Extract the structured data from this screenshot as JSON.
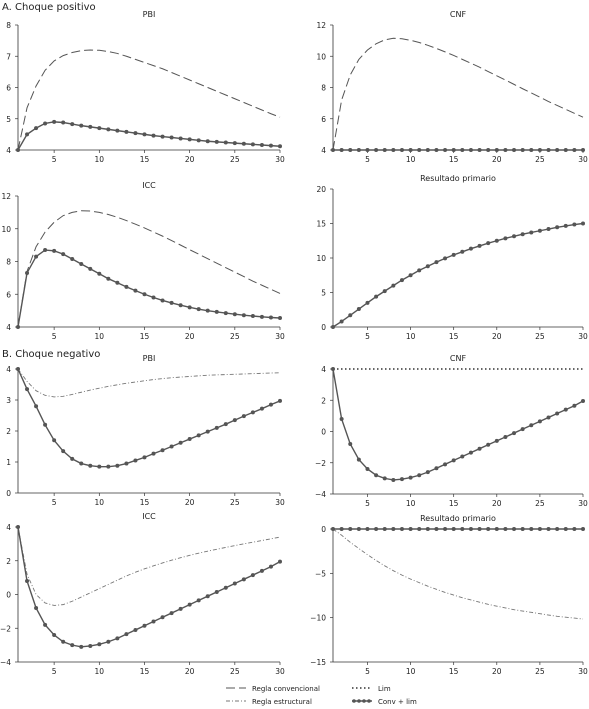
{
  "colors": {
    "axis": "#333333",
    "conv": "#555555",
    "struct": "#777777",
    "lim": "#333333",
    "convlim": "#555555"
  },
  "sections": [
    {
      "label": "A. Choque positivo"
    },
    {
      "label": "B. Choque negativo"
    }
  ],
  "legend": {
    "items": [
      {
        "key": "conv",
        "label": "Regla convencional"
      },
      {
        "key": "struct",
        "label": "Regla estructural"
      },
      {
        "key": "lim",
        "label": "Lim"
      },
      {
        "key": "convlim",
        "label": "Conv + lim"
      }
    ]
  },
  "chart_data": [
    {
      "type": "line",
      "panel": "A-PBI",
      "title": "PBI",
      "xlim": [
        1,
        30
      ],
      "ylim": [
        4,
        8
      ],
      "xticks": [
        5,
        10,
        15,
        20,
        25,
        30
      ],
      "yticks": [
        4,
        5,
        6,
        7,
        8
      ],
      "x": [
        1,
        2,
        3,
        4,
        5,
        6,
        7,
        8,
        9,
        10,
        11,
        12,
        13,
        14,
        15,
        16,
        17,
        18,
        19,
        20,
        21,
        22,
        23,
        24,
        25,
        26,
        27,
        28,
        29,
        30
      ],
      "series": [
        {
          "key": "conv",
          "values": [
            4.0,
            5.35,
            6.05,
            6.55,
            6.85,
            7.02,
            7.12,
            7.18,
            7.2,
            7.19,
            7.15,
            7.09,
            7.0,
            6.9,
            6.8,
            6.7,
            6.6,
            6.48,
            6.36,
            6.24,
            6.12,
            6.0,
            5.88,
            5.76,
            5.64,
            5.52,
            5.4,
            5.28,
            5.16,
            5.05
          ]
        },
        {
          "key": "convlim",
          "values": [
            4.0,
            4.5,
            4.7,
            4.85,
            4.9,
            4.88,
            4.83,
            4.78,
            4.74,
            4.7,
            4.66,
            4.62,
            4.58,
            4.54,
            4.5,
            4.46,
            4.43,
            4.4,
            4.37,
            4.34,
            4.31,
            4.28,
            4.26,
            4.24,
            4.22,
            4.2,
            4.18,
            4.16,
            4.14,
            4.12
          ]
        }
      ]
    },
    {
      "type": "line",
      "panel": "A-CNF",
      "title": "CNF",
      "xlim": [
        1,
        30
      ],
      "ylim": [
        4,
        12
      ],
      "xticks": [
        5,
        10,
        15,
        20,
        25,
        30
      ],
      "yticks": [
        4,
        6,
        8,
        10,
        12
      ],
      "x": [
        1,
        2,
        3,
        4,
        5,
        6,
        7,
        8,
        9,
        10,
        11,
        12,
        13,
        14,
        15,
        16,
        17,
        18,
        19,
        20,
        21,
        22,
        23,
        24,
        25,
        26,
        27,
        28,
        29,
        30
      ],
      "series": [
        {
          "key": "conv",
          "values": [
            4.0,
            7.2,
            8.8,
            9.8,
            10.4,
            10.8,
            11.05,
            11.15,
            11.12,
            11.02,
            10.88,
            10.7,
            10.5,
            10.28,
            10.05,
            9.8,
            9.55,
            9.3,
            9.02,
            8.75,
            8.48,
            8.2,
            7.92,
            7.65,
            7.38,
            7.1,
            6.85,
            6.6,
            6.35,
            6.1
          ]
        },
        {
          "key": "convlim",
          "values": [
            4.0,
            4.0,
            4.0,
            4.0,
            4.0,
            4.0,
            4.0,
            4.0,
            4.0,
            4.0,
            4.0,
            4.0,
            4.0,
            4.0,
            4.0,
            4.0,
            4.0,
            4.0,
            4.0,
            4.0,
            4.0,
            4.0,
            4.0,
            4.0,
            4.0,
            4.0,
            4.0,
            4.0,
            4.0,
            4.0
          ]
        }
      ]
    },
    {
      "type": "line",
      "panel": "A-ICC",
      "title": "ICC",
      "xlim": [
        1,
        30
      ],
      "ylim": [
        4,
        12
      ],
      "xticks": [
        5,
        10,
        15,
        20,
        25,
        30
      ],
      "yticks": [
        4,
        6,
        8,
        10,
        12
      ],
      "x": [
        1,
        2,
        3,
        4,
        5,
        6,
        7,
        8,
        9,
        10,
        11,
        12,
        13,
        14,
        15,
        16,
        17,
        18,
        19,
        20,
        21,
        22,
        23,
        24,
        25,
        26,
        27,
        28,
        29,
        30
      ],
      "series": [
        {
          "key": "conv",
          "values": [
            4.0,
            7.4,
            8.9,
            9.8,
            10.4,
            10.8,
            11.0,
            11.1,
            11.08,
            11.0,
            10.87,
            10.7,
            10.5,
            10.28,
            10.05,
            9.8,
            9.55,
            9.28,
            9.0,
            8.72,
            8.45,
            8.17,
            7.9,
            7.62,
            7.35,
            7.08,
            6.8,
            6.55,
            6.3,
            6.05
          ]
        },
        {
          "key": "convlim",
          "values": [
            4.0,
            7.3,
            8.3,
            8.7,
            8.65,
            8.45,
            8.15,
            7.85,
            7.55,
            7.25,
            6.95,
            6.7,
            6.45,
            6.22,
            6.0,
            5.8,
            5.62,
            5.47,
            5.33,
            5.2,
            5.09,
            5.0,
            4.92,
            4.85,
            4.78,
            4.72,
            4.67,
            4.62,
            4.58,
            4.55
          ]
        }
      ]
    },
    {
      "type": "line",
      "panel": "A-Resultado",
      "title": "Resultado primario",
      "xlim": [
        1,
        30
      ],
      "ylim": [
        0,
        20
      ],
      "xticks": [
        5,
        10,
        15,
        20,
        25,
        30
      ],
      "yticks": [
        0,
        5,
        10,
        15,
        20
      ],
      "x": [
        1,
        2,
        3,
        4,
        5,
        6,
        7,
        8,
        9,
        10,
        11,
        12,
        13,
        14,
        15,
        16,
        17,
        18,
        19,
        20,
        21,
        22,
        23,
        24,
        25,
        26,
        27,
        28,
        29,
        30
      ],
      "series": [
        {
          "key": "convlim",
          "values": [
            0.0,
            0.8,
            1.7,
            2.6,
            3.5,
            4.4,
            5.2,
            6.0,
            6.8,
            7.5,
            8.2,
            8.8,
            9.4,
            9.95,
            10.45,
            10.9,
            11.35,
            11.75,
            12.15,
            12.5,
            12.85,
            13.15,
            13.45,
            13.7,
            13.95,
            14.2,
            14.45,
            14.65,
            14.85,
            15.0
          ]
        }
      ]
    },
    {
      "type": "line",
      "panel": "B-PBI",
      "title": "PBI",
      "xlim": [
        1,
        30
      ],
      "ylim": [
        0,
        4
      ],
      "xticks": [
        5,
        10,
        15,
        20,
        25,
        30
      ],
      "yticks": [
        0,
        1,
        2,
        3,
        4
      ],
      "x": [
        1,
        2,
        3,
        4,
        5,
        6,
        7,
        8,
        9,
        10,
        11,
        12,
        13,
        14,
        15,
        16,
        17,
        18,
        19,
        20,
        21,
        22,
        23,
        24,
        25,
        26,
        27,
        28,
        29,
        30
      ],
      "series": [
        {
          "key": "struct",
          "values": [
            4.0,
            3.6,
            3.3,
            3.15,
            3.1,
            3.12,
            3.18,
            3.25,
            3.32,
            3.38,
            3.44,
            3.49,
            3.54,
            3.58,
            3.62,
            3.66,
            3.69,
            3.72,
            3.74,
            3.76,
            3.78,
            3.8,
            3.81,
            3.82,
            3.83,
            3.84,
            3.85,
            3.86,
            3.87,
            3.88
          ]
        },
        {
          "key": "convlim",
          "values": [
            4.0,
            3.35,
            2.8,
            2.2,
            1.7,
            1.35,
            1.1,
            0.95,
            0.88,
            0.85,
            0.85,
            0.88,
            0.95,
            1.05,
            1.15,
            1.27,
            1.38,
            1.5,
            1.62,
            1.74,
            1.86,
            1.98,
            2.1,
            2.22,
            2.35,
            2.48,
            2.6,
            2.72,
            2.85,
            2.97
          ]
        }
      ]
    },
    {
      "type": "line",
      "panel": "B-CNF",
      "title": "CNF",
      "xlim": [
        1,
        30
      ],
      "ylim": [
        -4,
        4
      ],
      "xticks": [
        5,
        10,
        15,
        20,
        25,
        30
      ],
      "yticks": [
        -4,
        -2,
        0,
        2,
        4
      ],
      "x": [
        1,
        2,
        3,
        4,
        5,
        6,
        7,
        8,
        9,
        10,
        11,
        12,
        13,
        14,
        15,
        16,
        17,
        18,
        19,
        20,
        21,
        22,
        23,
        24,
        25,
        26,
        27,
        28,
        29,
        30
      ],
      "series": [
        {
          "key": "lim",
          "values": [
            4.0,
            4.0,
            4.0,
            4.0,
            4.0,
            4.0,
            4.0,
            4.0,
            4.0,
            4.0,
            4.0,
            4.0,
            4.0,
            4.0,
            4.0,
            4.0,
            4.0,
            4.0,
            4.0,
            4.0,
            4.0,
            4.0,
            4.0,
            4.0,
            4.0,
            4.0,
            4.0,
            4.0,
            4.0,
            4.0
          ]
        },
        {
          "key": "convlim",
          "values": [
            4.0,
            0.8,
            -0.8,
            -1.8,
            -2.4,
            -2.8,
            -3.0,
            -3.1,
            -3.05,
            -2.95,
            -2.8,
            -2.6,
            -2.35,
            -2.1,
            -1.85,
            -1.6,
            -1.35,
            -1.1,
            -0.85,
            -0.6,
            -0.35,
            -0.1,
            0.15,
            0.4,
            0.65,
            0.9,
            1.15,
            1.4,
            1.65,
            1.95
          ]
        }
      ]
    },
    {
      "type": "line",
      "panel": "B-ICC",
      "title": "ICC",
      "xlim": [
        1,
        30
      ],
      "ylim": [
        -4,
        4
      ],
      "xticks": [
        5,
        10,
        15,
        20,
        25,
        30
      ],
      "yticks": [
        -4,
        -2,
        0,
        2,
        4
      ],
      "x": [
        1,
        2,
        3,
        4,
        5,
        6,
        7,
        8,
        9,
        10,
        11,
        12,
        13,
        14,
        15,
        16,
        17,
        18,
        19,
        20,
        21,
        22,
        23,
        24,
        25,
        26,
        27,
        28,
        29,
        30
      ],
      "series": [
        {
          "key": "struct",
          "values": [
            4.0,
            1.2,
            0.0,
            -0.5,
            -0.65,
            -0.6,
            -0.4,
            -0.15,
            0.1,
            0.35,
            0.6,
            0.85,
            1.1,
            1.32,
            1.52,
            1.7,
            1.87,
            2.03,
            2.18,
            2.32,
            2.45,
            2.57,
            2.68,
            2.79,
            2.9,
            3.0,
            3.1,
            3.2,
            3.3,
            3.4
          ]
        },
        {
          "key": "convlim",
          "values": [
            4.0,
            0.8,
            -0.8,
            -1.8,
            -2.4,
            -2.8,
            -3.0,
            -3.1,
            -3.05,
            -2.95,
            -2.8,
            -2.6,
            -2.35,
            -2.1,
            -1.85,
            -1.6,
            -1.35,
            -1.1,
            -0.85,
            -0.6,
            -0.35,
            -0.1,
            0.15,
            0.4,
            0.65,
            0.9,
            1.15,
            1.4,
            1.65,
            1.95
          ]
        }
      ]
    },
    {
      "type": "line",
      "panel": "B-Resultado",
      "title": "Resultado primario",
      "xlim": [
        1,
        30
      ],
      "ylim": [
        -15,
        0
      ],
      "xticks": [
        5,
        10,
        15,
        20,
        25,
        30
      ],
      "yticks": [
        -15,
        -10,
        -5,
        0
      ],
      "x": [
        1,
        2,
        3,
        4,
        5,
        6,
        7,
        8,
        9,
        10,
        11,
        12,
        13,
        14,
        15,
        16,
        17,
        18,
        19,
        20,
        21,
        22,
        23,
        24,
        25,
        26,
        27,
        28,
        29,
        30
      ],
      "series": [
        {
          "key": "struct",
          "values": [
            0.0,
            -0.7,
            -1.5,
            -2.2,
            -2.9,
            -3.55,
            -4.15,
            -4.7,
            -5.2,
            -5.65,
            -6.05,
            -6.45,
            -6.8,
            -7.15,
            -7.45,
            -7.75,
            -8.0,
            -8.25,
            -8.5,
            -8.7,
            -8.9,
            -9.1,
            -9.25,
            -9.4,
            -9.55,
            -9.7,
            -9.85,
            -9.95,
            -10.05,
            -10.15
          ]
        },
        {
          "key": "convlim",
          "values": [
            0.0,
            0.0,
            0.0,
            0.0,
            0.0,
            0.0,
            0.0,
            0.0,
            0.0,
            0.0,
            0.0,
            0.0,
            0.0,
            0.0,
            0.0,
            0.0,
            0.0,
            0.0,
            0.0,
            0.0,
            0.0,
            0.0,
            0.0,
            0.0,
            0.0,
            0.0,
            0.0,
            0.0,
            0.0,
            0.0
          ]
        }
      ]
    }
  ]
}
